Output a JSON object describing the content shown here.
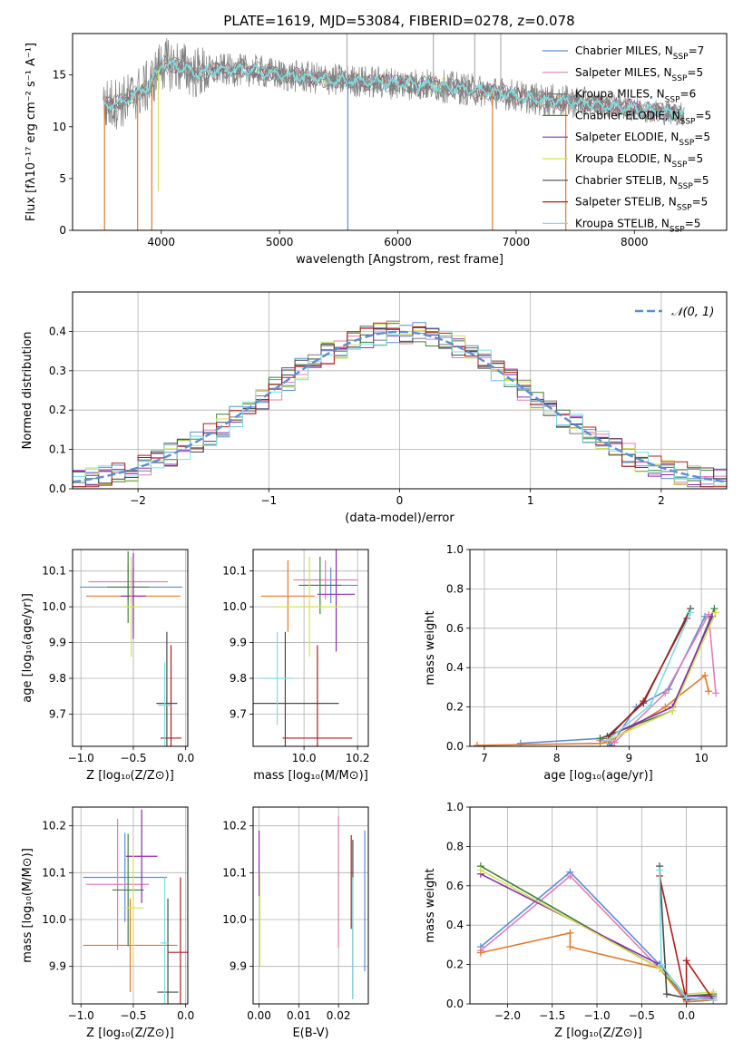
{
  "figure": {
    "title": "PLATE=1619, MJD=53084, FIBERID=0278, z=0.078"
  },
  "chart_data": [
    {
      "id": "spectrum",
      "type": "line",
      "xlabel": "wavelength [Angstrom, rest frame]",
      "ylabel": "Flux [fλ10⁻¹⁷ erg cm⁻² s⁻¹ A⁻¹]",
      "xlim": [
        3250,
        8780
      ],
      "ylim": [
        0,
        19
      ],
      "xticks": [
        4000,
        5000,
        6000,
        7000,
        8000
      ],
      "yticks": [
        0,
        5,
        10,
        15
      ],
      "grid": false,
      "legend_position": "top-right",
      "legend": [
        {
          "base": "Chabrier MILES, N",
          "sub": "SSP",
          "tail": "=7",
          "color": "#5b8ed6"
        },
        {
          "base": "Salpeter MILES, N",
          "sub": "SSP",
          "tail": "=5",
          "color": "#e07fb6"
        },
        {
          "base": "Kroupa MILES, N",
          "sub": "SSP",
          "tail": "=6",
          "color": "#7a7a7a"
        },
        {
          "base": "Chabrier ELODIE, N",
          "sub": "SSP",
          "tail": "=5",
          "color": "#3f7f3f"
        },
        {
          "base": "Salpeter ELODIE, N",
          "sub": "SSP",
          "tail": "=5",
          "color": "#8b2bb0"
        },
        {
          "base": "Kroupa ELODIE, N",
          "sub": "SSP",
          "tail": "=5",
          "color": "#d4e157"
        },
        {
          "base": "Chabrier STELIB, N",
          "sub": "SSP",
          "tail": "=5",
          "color": "#4a4a4a"
        },
        {
          "base": "Salpeter STELIB, N",
          "sub": "SSP",
          "tail": "=5",
          "color": "#b01c1c"
        },
        {
          "base": "Kroupa STELIB, N",
          "sub": "SSP",
          "tail": "=5",
          "color": "#7fdde0"
        }
      ],
      "continuum": {
        "x": [
          3500,
          3700,
          3900,
          4000,
          4100,
          4300,
          4500,
          4800,
          5000,
          5200,
          5500,
          5800,
          6000,
          6300,
          6600,
          6900,
          7200,
          7500,
          7800,
          8100,
          8400
        ],
        "y": [
          12.0,
          12.5,
          14.0,
          16.0,
          16.0,
          15.2,
          15.5,
          15.4,
          15.0,
          14.8,
          14.5,
          14.3,
          14.2,
          14.0,
          13.6,
          13.2,
          12.6,
          12.4,
          12.0,
          11.6,
          11.2
        ]
      },
      "drops": [
        {
          "x": 3520,
          "y": 0,
          "color": "#e07a2a"
        },
        {
          "x": 3800,
          "y": 0,
          "color": "#e07a2a"
        },
        {
          "x": 3920,
          "y": 0,
          "color": "#e07a2a"
        },
        {
          "x": 3975,
          "y": 3.8,
          "color": "#d4e157"
        },
        {
          "x": 5577,
          "y": 0,
          "color": "#5b8ed6"
        },
        {
          "x": 6800,
          "y": 0,
          "color": "#e07a2a"
        },
        {
          "x": 7420,
          "y": 0,
          "color": "#e07a2a"
        }
      ]
    },
    {
      "id": "residuals",
      "type": "step",
      "xlabel": "(data-model)/error",
      "ylabel": "Normed distribution",
      "xlim": [
        -2.5,
        2.5
      ],
      "ylim": [
        0,
        0.5
      ],
      "xticks": [
        -2,
        -1,
        0,
        1,
        2
      ],
      "yticks": [
        0.0,
        0.1,
        0.2,
        0.3,
        0.4
      ],
      "grid": true,
      "legend_position": "top-right",
      "gaussian_label": "𝒩(0, 1)",
      "gaussian_color": "#5b8ed6"
    },
    {
      "id": "age_vs_Z",
      "type": "errorbar",
      "xlabel": "Z [log₁₀(Z/Z⊙)]",
      "ylabel": "age  [log₁₀(age/yr)]",
      "xlim": [
        -1.08,
        0.02
      ],
      "ylim": [
        9.61,
        10.16
      ],
      "xticks": [
        -1.0,
        -0.5,
        0.0
      ],
      "yticks": [
        9.7,
        9.8,
        9.9,
        10.0,
        10.1
      ],
      "points": [
        {
          "x": -0.52,
          "xerr": 0.49,
          "y": 10.055,
          "yerr": 0.045,
          "color": "#5b8ed6"
        },
        {
          "x": -0.55,
          "xerr": 0.38,
          "y": 10.07,
          "yerr": 0.05,
          "color": "#e07fb6"
        },
        {
          "x": -0.5,
          "xerr": 0.45,
          "y": 10.03,
          "yerr": 0.08,
          "color": "#e07a2a"
        },
        {
          "x": -0.55,
          "xerr": 0.2,
          "y": 10.055,
          "yerr": 0.1,
          "color": "#3f7f3f"
        },
        {
          "x": -0.5,
          "xerr": 0.12,
          "y": 10.03,
          "yerr": 0.12,
          "color": "#8b2bb0"
        },
        {
          "x": -0.52,
          "xerr": 0.08,
          "y": 10.0,
          "yerr": 0.14,
          "color": "#d4e157"
        },
        {
          "x": -0.18,
          "xerr": 0.1,
          "y": 9.73,
          "yerr": 0.2,
          "color": "#4a4a4a"
        },
        {
          "x": -0.14,
          "xerr": 0.1,
          "y": 9.633,
          "yerr": 0.26,
          "color": "#b01c1c"
        },
        {
          "x": -0.2,
          "xerr": 0.06,
          "y": 9.725,
          "yerr": 0.12,
          "color": "#7fdde0"
        }
      ]
    },
    {
      "id": "age_vs_mass",
      "type": "errorbar",
      "xlabel": "mass [log₁₀(M/M⊙)]",
      "ylabel": "",
      "xlim": [
        9.81,
        10.24
      ],
      "ylim": [
        9.61,
        10.16
      ],
      "xticks": [
        10.0,
        10.2
      ],
      "yticks": [
        9.7,
        9.8,
        9.9,
        10.0,
        10.1
      ],
      "points": [
        {
          "x": 10.1,
          "xerr": 0.1,
          "y": 10.06,
          "yerr": 0.05,
          "color": "#5b8ed6"
        },
        {
          "x": 10.08,
          "xerr": 0.12,
          "y": 10.075,
          "yerr": 0.055,
          "color": "#e07fb6"
        },
        {
          "x": 9.94,
          "xerr": 0.1,
          "y": 10.03,
          "yerr": 0.1,
          "color": "#e07a2a"
        },
        {
          "x": 10.06,
          "xerr": 0.08,
          "y": 10.06,
          "yerr": 0.08,
          "color": "#3f7f3f"
        },
        {
          "x": 10.12,
          "xerr": 0.07,
          "y": 10.035,
          "yerr": 0.16,
          "color": "#8b2bb0"
        },
        {
          "x": 10.02,
          "xerr": 0.12,
          "y": 10.0,
          "yerr": 0.14,
          "color": "#d4e157"
        },
        {
          "x": 9.93,
          "xerr": 0.2,
          "y": 9.73,
          "yerr": 0.2,
          "color": "#4a4a4a"
        },
        {
          "x": 10.05,
          "xerr": 0.13,
          "y": 9.633,
          "yerr": 0.26,
          "color": "#b01c1c"
        },
        {
          "x": 9.9,
          "xerr": 0.06,
          "y": 9.8,
          "yerr": 0.13,
          "color": "#7fdde0"
        }
      ]
    },
    {
      "id": "mass_weight_vs_age",
      "type": "line",
      "xlabel": "age  [log₁₀(age/yr)]",
      "ylabel": "mass weight",
      "xlim": [
        6.8,
        10.35
      ],
      "ylim": [
        0,
        1
      ],
      "xticks": [
        7,
        8,
        9,
        10
      ],
      "yticks": [
        0.0,
        0.2,
        0.4,
        0.6,
        0.8,
        1.0
      ],
      "grid": true,
      "series": [
        {
          "color": "#5b8ed6",
          "x": [
            7.5,
            8.6,
            8.7,
            8.75,
            9.1,
            9.55,
            10.05
          ],
          "y": [
            0.015,
            0.04,
            0.02,
            0.005,
            0.2,
            0.29,
            0.66
          ]
        },
        {
          "color": "#e07fb6",
          "x": [
            8.6,
            8.8,
            9.5,
            10.1,
            10.2
          ],
          "y": [
            0.03,
            0.02,
            0.27,
            0.67,
            0.27
          ]
        },
        {
          "color": "#e07a2a",
          "x": [
            6.9,
            8.6,
            8.7,
            9.5,
            10.05,
            10.1
          ],
          "y": [
            0.005,
            0.015,
            0.02,
            0.2,
            0.36,
            0.28
          ]
        },
        {
          "color": "#3f7f3f",
          "x": [
            8.6,
            9.6,
            10.18
          ],
          "y": [
            0.04,
            0.18,
            0.7
          ]
        },
        {
          "color": "#8b2bb0",
          "x": [
            8.7,
            9.6,
            10.15
          ],
          "y": [
            0.05,
            0.2,
            0.66
          ]
        },
        {
          "color": "#d4e157",
          "x": [
            8.7,
            9.6,
            10.2
          ],
          "y": [
            0.03,
            0.18,
            0.68
          ]
        },
        {
          "color": "#4a4a4a",
          "x": [
            8.7,
            9.2,
            9.85
          ],
          "y": [
            0.05,
            0.22,
            0.7
          ]
        },
        {
          "color": "#b01c1c",
          "x": [
            8.7,
            9.2,
            9.8
          ],
          "y": [
            0.04,
            0.23,
            0.65
          ]
        },
        {
          "color": "#7fdde0",
          "x": [
            8.7,
            9.3,
            9.85
          ],
          "y": [
            0.03,
            0.21,
            0.68
          ]
        }
      ]
    },
    {
      "id": "mass_vs_Z",
      "type": "errorbar",
      "xlabel": "Z [log₁₀(Z/Z⊙)]",
      "ylabel": "mass [log₁₀(M/M⊙)]",
      "xlim": [
        -1.08,
        0.02
      ],
      "ylim": [
        9.82,
        10.24
      ],
      "xticks": [
        -1.0,
        -0.5,
        0.0
      ],
      "yticks": [
        9.9,
        10.0,
        10.1,
        10.2
      ],
      "points": [
        {
          "x": -0.58,
          "xerr": 0.4,
          "y": 10.09,
          "yerr": 0.095,
          "color": "#5b8ed6"
        },
        {
          "x": -0.65,
          "xerr": 0.3,
          "y": 10.075,
          "yerr": 0.14,
          "color": "#e07fb6"
        },
        {
          "x": -0.53,
          "xerr": 0.45,
          "y": 9.945,
          "yerr": 0.1,
          "color": "#e07a2a"
        },
        {
          "x": -0.55,
          "xerr": 0.15,
          "y": 10.063,
          "yerr": 0.12,
          "color": "#3f7f3f"
        },
        {
          "x": -0.42,
          "xerr": 0.15,
          "y": 10.135,
          "yerr": 0.1,
          "color": "#8b2bb0"
        },
        {
          "x": -0.5,
          "xerr": 0.1,
          "y": 10.025,
          "yerr": 0.12,
          "color": "#d4e157"
        },
        {
          "x": -0.17,
          "xerr": 0.1,
          "y": 9.845,
          "yerr": 0.2,
          "color": "#4a4a4a"
        },
        {
          "x": -0.05,
          "xerr": 0.12,
          "y": 9.93,
          "yerr": 0.16,
          "color": "#b01c1c"
        },
        {
          "x": -0.2,
          "xerr": 0.04,
          "y": 9.95,
          "yerr": 0.14,
          "color": "#7fdde0"
        }
      ]
    },
    {
      "id": "mass_vs_EBV",
      "type": "errorbar",
      "xlabel": "E(B-V)",
      "ylabel": "",
      "xlim": [
        -0.0015,
        0.0275
      ],
      "ylim": [
        9.82,
        10.24
      ],
      "xticks": [
        0.0,
        0.01,
        0.02
      ],
      "tick_labels": [
        "0.00",
        "0.01",
        "0.02"
      ],
      "yticks": [
        9.9,
        10.0,
        10.1,
        10.2
      ],
      "points": [
        {
          "x": 0.0266,
          "xerr": 0,
          "y": 10.04,
          "yerr": 0.15,
          "color": "#5b8ed6"
        },
        {
          "x": 0.02,
          "xerr": 0,
          "y": 10.08,
          "yerr": 0.14,
          "color": "#e07fb6"
        },
        {
          "x": 0.0236,
          "xerr": 0,
          "y": 10.0,
          "yerr": 0.17,
          "color": "#4a4a4a"
        },
        {
          "x": 0.0232,
          "xerr": 0,
          "y": 10.08,
          "yerr": 0.1,
          "color": "#b01c1c"
        },
        {
          "x": 0.0236,
          "xerr": 0,
          "y": 9.96,
          "yerr": 0.13,
          "color": "#7fdde0"
        },
        {
          "x": 0.0,
          "xerr": 0,
          "y": 10.12,
          "yerr": 0.07,
          "color": "#8b2bb0"
        },
        {
          "x": 0.0002,
          "xerr": 0,
          "y": 10.0,
          "yerr": 0.1,
          "color": "#d4e157"
        }
      ]
    },
    {
      "id": "mass_weight_vs_Z",
      "type": "line",
      "xlabel": "Z [log₁₀(Z/Z⊙)]",
      "ylabel": "mass weight",
      "xlim": [
        -2.42,
        0.45
      ],
      "ylim": [
        0,
        1
      ],
      "xticks": [
        -2.0,
        -1.5,
        -1.0,
        -0.5,
        0.0
      ],
      "yticks": [
        0.0,
        0.2,
        0.4,
        0.6,
        0.8,
        1.0
      ],
      "grid": true,
      "series": [
        {
          "color": "#5b8ed6",
          "x": [
            -2.3,
            -1.3,
            -0.3,
            0.0,
            0.3
          ],
          "y": [
            0.29,
            0.67,
            0.2,
            0.02,
            0.03
          ]
        },
        {
          "color": "#e07fb6",
          "x": [
            -2.3,
            -1.3,
            -0.3,
            0.0,
            0.3
          ],
          "y": [
            0.27,
            0.65,
            0.18,
            0.02,
            0.04
          ]
        },
        {
          "color": "#e07a2a",
          "x": [
            -2.3,
            -1.3,
            -1.3,
            -0.3,
            0.0,
            0.3
          ],
          "y": [
            0.26,
            0.36,
            0.29,
            0.18,
            0.01,
            0.02
          ]
        },
        {
          "color": "#3f7f3f",
          "x": [
            -2.3,
            -0.3,
            0.0,
            0.3
          ],
          "y": [
            0.7,
            0.18,
            0.04,
            0.05
          ]
        },
        {
          "color": "#8b2bb0",
          "x": [
            -2.3,
            -0.3,
            0.0,
            0.3
          ],
          "y": [
            0.66,
            0.2,
            0.04,
            0.04
          ]
        },
        {
          "color": "#d4e157",
          "x": [
            -2.3,
            -0.3,
            0.0,
            0.3
          ],
          "y": [
            0.68,
            0.18,
            0.05,
            0.06
          ]
        },
        {
          "color": "#4a4a4a",
          "x": [
            -0.3,
            -0.22,
            0.0,
            0.3
          ],
          "y": [
            0.7,
            0.05,
            0.03,
            0.02
          ]
        },
        {
          "color": "#b01c1c",
          "x": [
            -0.3,
            0.0,
            0.0,
            0.3
          ],
          "y": [
            0.65,
            0.02,
            0.22,
            0.02
          ]
        },
        {
          "color": "#7fdde0",
          "x": [
            -0.3,
            -0.28,
            0.0,
            0.3
          ],
          "y": [
            0.68,
            0.2,
            0.03,
            0.02
          ]
        }
      ]
    }
  ]
}
